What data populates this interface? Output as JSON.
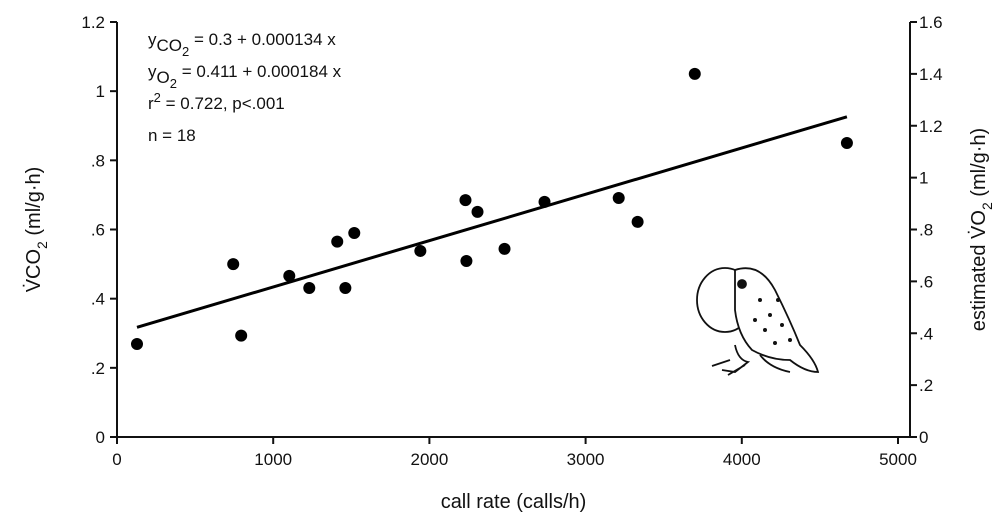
{
  "chart_data": {
    "type": "scatter",
    "xlabel": "call rate (calls/h)",
    "ylabel": [
      "V̇CO",
      "2",
      " (ml/g·h)"
    ],
    "y2label": [
      "estimated V̇O",
      "2",
      " (ml/g·h)"
    ],
    "annotations": [
      [
        "y",
        "CO",
        "2",
        " =  0.3 + 0.000134 x"
      ],
      [
        "y",
        "O",
        "2",
        " =  0.411 + 0.000184 x"
      ],
      [
        "r",
        "2",
        " =  0.722, p<.001"
      ],
      [
        "n  =  18"
      ]
    ],
    "xlim": [
      0,
      5000
    ],
    "xticks": [
      0,
      1000,
      2000,
      3000,
      4000,
      5000
    ],
    "ylim": [
      0,
      1.2
    ],
    "yticks": [
      0,
      {
        "value": 0.2,
        "label": ".2"
      },
      {
        "value": 0.4,
        "label": ".4"
      },
      {
        "value": 0.6,
        "label": ".6"
      },
      {
        "value": 0.8,
        "label": ".8"
      },
      1,
      1.2
    ],
    "y2lim": [
      0,
      1.6
    ],
    "y2ticks": [
      0,
      {
        "value": 0.2,
        "label": ".2"
      },
      {
        "value": 0.4,
        "label": ".4"
      },
      {
        "value": 0.6,
        "label": ".6"
      },
      {
        "value": 0.8,
        "label": ".8"
      },
      1,
      1.2,
      1.4,
      1.6
    ],
    "color": "#000000",
    "x": [
      128,
      744,
      795,
      1103,
      1231,
      1410,
      1462,
      1519,
      1942,
      2231,
      2237,
      2308,
      2481,
      2737,
      3212,
      3333,
      3699,
      4673
    ],
    "values": [
      0.269,
      0.5,
      0.293,
      0.466,
      0.431,
      0.565,
      0.431,
      0.59,
      0.538,
      0.685,
      0.509,
      0.651,
      0.544,
      0.68,
      0.691,
      0.622,
      1.05,
      0.85
    ],
    "fit": {
      "x": [
        128,
        4673
      ],
      "values": [
        0.317,
        0.926
      ]
    }
  }
}
